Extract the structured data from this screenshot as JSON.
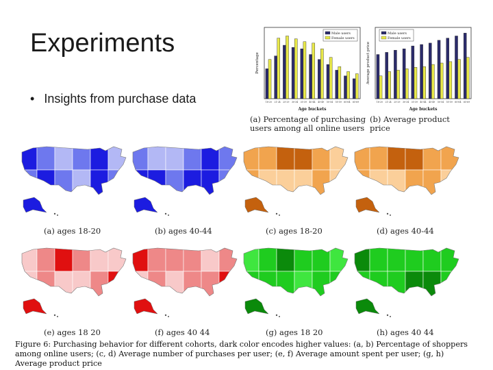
{
  "slide": {
    "title": "Experiments",
    "bullet_marker": "•",
    "bullet_text": "Insights from purchase data"
  },
  "chart_data": [
    {
      "type": "bar",
      "title": "",
      "xlabel": "Age buckets",
      "ylabel": "Percentage",
      "categories": [
        "18-20",
        "21-24",
        "25-29",
        "30-34",
        "35-39",
        "40-44",
        "45-49",
        "50-54",
        "55-59",
        "60-64",
        "65-69"
      ],
      "series": [
        {
          "name": "Male users",
          "color": "#2b2b6b",
          "values": [
            0.42,
            0.6,
            0.75,
            0.72,
            0.7,
            0.62,
            0.55,
            0.48,
            0.4,
            0.32,
            0.28
          ]
        },
        {
          "name": "Female users",
          "color": "#e8e84a",
          "values": [
            0.55,
            0.85,
            0.88,
            0.84,
            0.8,
            0.78,
            0.7,
            0.58,
            0.45,
            0.38,
            0.35
          ]
        }
      ],
      "ylim": [
        0,
        1
      ],
      "legend": "top-right",
      "caption": "(a) Percentage of purchasing users among all online users"
    },
    {
      "type": "bar",
      "title": "",
      "xlabel": "Age buckets",
      "ylabel": "Average product price",
      "categories": [
        "18-20",
        "21-24",
        "25-29",
        "30-34",
        "35-39",
        "40-44",
        "45-49",
        "50-54",
        "55-59",
        "60-64",
        "65-69"
      ],
      "series": [
        {
          "name": "Male users",
          "color": "#2b2b6b",
          "values": [
            0.62,
            0.65,
            0.68,
            0.7,
            0.74,
            0.76,
            0.78,
            0.82,
            0.85,
            0.88,
            0.92
          ]
        },
        {
          "name": "Female users",
          "color": "#e8e84a",
          "values": [
            0.32,
            0.38,
            0.4,
            0.42,
            0.44,
            0.45,
            0.48,
            0.5,
            0.52,
            0.55,
            0.58
          ]
        }
      ],
      "ylim": [
        0,
        1
      ],
      "legend": "top-left",
      "caption": "(b) Average product price"
    }
  ],
  "maps": [
    {
      "caption": "(a) ages 18-20",
      "light": "#b3b8f5",
      "mid": "#6e78ee",
      "dark": "#1c1ce0"
    },
    {
      "caption": "(b) ages 40-44",
      "light": "#b3b8f5",
      "mid": "#6e78ee",
      "dark": "#1c1ce0"
    },
    {
      "caption": "(c) ages 18-20",
      "light": "#fbcf9a",
      "mid": "#f1a44e",
      "dark": "#c4610e"
    },
    {
      "caption": "(d) ages 40-44",
      "light": "#fbcf9a",
      "mid": "#f1a44e",
      "dark": "#c4610e"
    },
    {
      "caption": "(e) ages 18 20",
      "light": "#f8c9c9",
      "mid": "#ee8888",
      "dark": "#e01010"
    },
    {
      "caption": "(f) ages 40 44",
      "light": "#f8c9c9",
      "mid": "#ee8888",
      "dark": "#e01010"
    },
    {
      "caption": "(g) ages 18 20",
      "light": "#3fe63f",
      "mid": "#1fcc1f",
      "dark": "#0b8a0b"
    },
    {
      "caption": "(h) ages 40 44",
      "light": "#3fe63f",
      "mid": "#1fcc1f",
      "dark": "#0b8a0b"
    }
  ],
  "figure_caption": "Figure 6: Purchasing behavior for different cohorts, dark color encodes higher values: (a, b) Percentage of shoppers among online users; (c, d) Average number of purchases per user; (e, f) Average amount spent per user; (g, h) Average product price"
}
